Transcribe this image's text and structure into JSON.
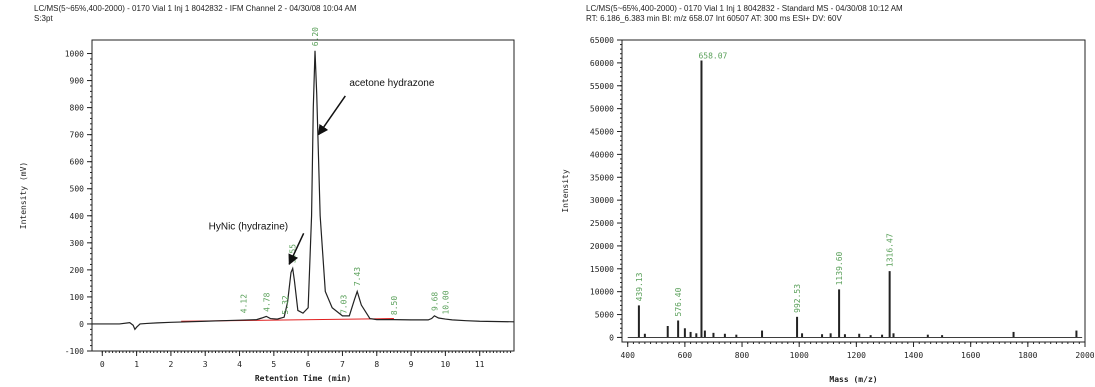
{
  "chart_data": [
    {
      "type": "line",
      "header_line1": "LC/MS(5~65%,400-2000) - 0170 Vial 1 Inj 1 8042832 - IFM Channel 2 - 04/30/08 10:04 AM",
      "header_line2": "S:3pt",
      "xlabel": "Retention Time (min)",
      "ylabel": "Intensity (mV)",
      "xlim": [
        -0.3,
        12
      ],
      "ylim": [
        -100,
        1050
      ],
      "x_ticks": [
        "0",
        "1",
        "2",
        "3",
        "4",
        "5",
        "6",
        "7",
        "8",
        "9",
        "10",
        "11"
      ],
      "y_ticks": [
        "-100",
        "0",
        "100",
        "200",
        "300",
        "400",
        "500",
        "600",
        "700",
        "800",
        "900",
        "1000"
      ],
      "series": [
        {
          "x": [
            -0.3,
            0.5,
            0.8,
            0.9,
            0.95,
            1.0,
            1.1,
            1.3,
            1.6,
            2.0,
            2.5,
            3.0,
            3.5,
            4.0,
            4.5,
            4.65,
            4.78,
            4.9,
            5.1,
            5.3,
            5.4,
            5.5,
            5.55,
            5.6,
            5.7,
            5.85,
            6.0,
            6.1,
            6.15,
            6.2,
            6.25,
            6.35,
            6.5,
            6.7,
            7.0,
            7.2,
            7.35,
            7.43,
            7.55,
            7.8,
            8.0,
            8.5,
            9.0,
            9.5,
            9.6,
            9.68,
            9.8,
            10.0,
            10.2,
            10.6,
            11.0,
            12.0
          ],
          "y": [
            0,
            0,
            5,
            -5,
            -20,
            -12,
            0,
            2,
            4,
            6,
            8,
            10,
            12,
            14,
            16,
            22,
            28,
            20,
            18,
            25,
            80,
            190,
            205,
            160,
            50,
            40,
            60,
            400,
            800,
            1010,
            850,
            400,
            120,
            60,
            30,
            30,
            90,
            120,
            70,
            20,
            16,
            16,
            15,
            15,
            20,
            30,
            22,
            18,
            15,
            12,
            10,
            8
          ]
        }
      ],
      "baseline": {
        "color": "#e02020",
        "x": [
          2.3,
          8.5
        ],
        "y": [
          10,
          20
        ]
      },
      "peak_labels": [
        "4.12",
        "4.78",
        "5.32",
        "5.55",
        "6.20",
        "7.03",
        "7.43",
        "8.50",
        "9.68",
        "10.00"
      ],
      "peak_label_x": [
        4.12,
        4.78,
        5.32,
        5.55,
        6.2,
        7.03,
        7.43,
        8.5,
        9.68,
        10.0
      ],
      "peak_label_y": [
        25,
        30,
        20,
        210,
        1012,
        22,
        125,
        18,
        33,
        20
      ],
      "annotations": [
        {
          "text": "acetone hydrazone",
          "x": 7.2,
          "y": 880,
          "arrow_to": [
            6.3,
            700
          ]
        },
        {
          "text": "HyNic (hydrazine)",
          "x": 3.1,
          "y": 350,
          "arrow_to": [
            5.45,
            210
          ]
        }
      ],
      "colors": {
        "line": "#222222",
        "axis": "#222222",
        "peak_label": "#5aa05a",
        "background": "#ffffff"
      }
    },
    {
      "type": "bar",
      "header_line1": "LC/MS(5~65%,400-2000) - 0170 Vial 1 Inj 1 8042832 - Standard MS - 04/30/08 10:12 AM",
      "header_line2": "RT: 6.186_6.383 min  BI: m/z 658.07  Int 60507  AT: 300 ms  ESI+  DV: 60V",
      "xlabel": "Mass (m/z)",
      "ylabel": "Intensity",
      "xlim": [
        380,
        2000
      ],
      "ylim": [
        -1000,
        65000
      ],
      "x_ticks": [
        "400",
        "600",
        "800",
        "1000",
        "1200",
        "1400",
        "1600",
        "1800",
        "2000"
      ],
      "y_ticks": [
        "0",
        "5000",
        "10000",
        "15000",
        "20000",
        "25000",
        "30000",
        "35000",
        "40000",
        "45000",
        "50000",
        "55000",
        "60000",
        "65000"
      ],
      "peaks": {
        "mz": [
          439.13,
          460,
          540,
          576.4,
          600,
          620,
          640,
          658.07,
          670,
          700,
          740,
          780,
          870,
          992.53,
          1010,
          1080,
          1110,
          1139.6,
          1160,
          1210,
          1250,
          1290,
          1316.47,
          1330,
          1450,
          1500,
          1750,
          1970
        ],
        "intensity": [
          7000,
          800,
          2500,
          3700,
          2000,
          1200,
          900,
          60507,
          1500,
          1000,
          800,
          600,
          1500,
          4500,
          900,
          700,
          900,
          10500,
          700,
          800,
          500,
          600,
          14500,
          900,
          600,
          500,
          1200,
          1500
        ]
      },
      "peak_labels": [
        "439.13",
        "576.40",
        "658.07",
        "992.53",
        "1139.60",
        "1316.47"
      ],
      "peak_label_x": [
        439.13,
        576.4,
        658.07,
        992.53,
        1139.6,
        1316.47
      ],
      "peak_label_y": [
        7000,
        3700,
        60507,
        4500,
        10500,
        14500
      ],
      "colors": {
        "bar": "#222222",
        "axis": "#222222",
        "peak_label": "#5aa05a",
        "background": "#ffffff"
      }
    }
  ]
}
